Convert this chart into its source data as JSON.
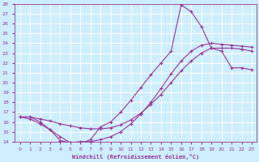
{
  "xlabel": "Windchill (Refroidissement éolien,°C)",
  "background_color": "#cceeff",
  "grid_color": "#ffffff",
  "line_color": "#993399",
  "xlim": [
    -0.5,
    23.5
  ],
  "ylim": [
    14,
    28
  ],
  "xticks": [
    0,
    1,
    2,
    3,
    4,
    5,
    6,
    7,
    8,
    9,
    10,
    11,
    12,
    13,
    14,
    15,
    16,
    17,
    18,
    19,
    20,
    21,
    22,
    23
  ],
  "yticks": [
    14,
    15,
    16,
    17,
    18,
    19,
    20,
    21,
    22,
    23,
    24,
    25,
    26,
    27,
    28
  ],
  "curve1_x": [
    0,
    1,
    2,
    3,
    4,
    5,
    6,
    7,
    8,
    9,
    10,
    11,
    12,
    13,
    14,
    15,
    16,
    17,
    18,
    19,
    20,
    21,
    22,
    23
  ],
  "curve1_y": [
    16.5,
    16.5,
    16.0,
    15.2,
    14.1,
    13.9,
    14.0,
    14.0,
    14.2,
    14.5,
    15.0,
    15.8,
    16.8,
    18.0,
    19.4,
    20.9,
    22.2,
    23.2,
    23.8,
    24.0,
    23.9,
    23.8,
    23.7,
    23.6
  ],
  "curve2_x": [
    0,
    1,
    2,
    3,
    4,
    5,
    6,
    7,
    8,
    9,
    10,
    11,
    12,
    13,
    14,
    15,
    16,
    17,
    18,
    19,
    20,
    21,
    22,
    23
  ],
  "curve2_y": [
    16.5,
    16.3,
    15.8,
    15.2,
    14.5,
    13.9,
    13.8,
    14.2,
    15.5,
    16.0,
    17.0,
    18.2,
    19.5,
    20.8,
    22.0,
    23.2,
    27.9,
    27.2,
    25.7,
    23.5,
    23.2,
    21.5,
    21.5,
    21.3
  ],
  "curve3_x": [
    0,
    1,
    2,
    3,
    4,
    5,
    6,
    7,
    8,
    9,
    10,
    11,
    12,
    13,
    14,
    15,
    16,
    17,
    18,
    19,
    20,
    21,
    22,
    23
  ],
  "curve3_y": [
    16.5,
    16.5,
    16.3,
    16.1,
    15.8,
    15.6,
    15.4,
    15.3,
    15.3,
    15.4,
    15.7,
    16.2,
    16.9,
    17.8,
    18.8,
    20.0,
    21.2,
    22.2,
    23.0,
    23.5,
    23.5,
    23.5,
    23.4,
    23.2
  ]
}
